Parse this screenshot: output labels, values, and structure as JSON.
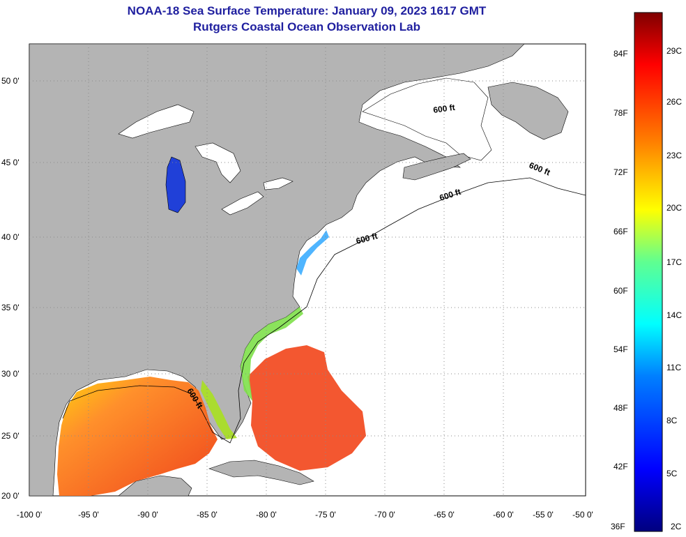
{
  "header": {
    "title": "NOAA-18 Sea Surface Temperature:  January 09, 2023 1617 GMT",
    "subtitle": "Rutgers Coastal Ocean Observation Lab"
  },
  "map": {
    "lon_labels": [
      "-100 0'",
      "-95 0'",
      "-90 0'",
      "-85 0'",
      "-80 0'",
      "-75 0'",
      "-70 0'",
      "-65 0'",
      "-60 0'",
      "-55 0'",
      "-50 0'"
    ],
    "lat_labels": [
      "20 0'",
      "25 0'",
      "30 0'",
      "35 0'",
      "40 0'",
      "45 0'",
      "50 0'"
    ],
    "isobath_labels": [
      "600 ft",
      "600 ft",
      "600 ft",
      "600 ft",
      "600 ft"
    ],
    "colors": {
      "land": "#b4b4b4",
      "ice_cloud": "#ffffff",
      "grid": "#8a8a8a"
    }
  },
  "colorbar": {
    "fahrenheit": [
      "84F",
      "78F",
      "72F",
      "66F",
      "60F",
      "54F",
      "48F",
      "42F",
      "36F"
    ],
    "celsius": [
      "29C",
      "26C",
      "23C",
      "20C",
      "17C",
      "14C",
      "11C",
      "8C",
      "5C",
      "2C"
    ]
  }
}
